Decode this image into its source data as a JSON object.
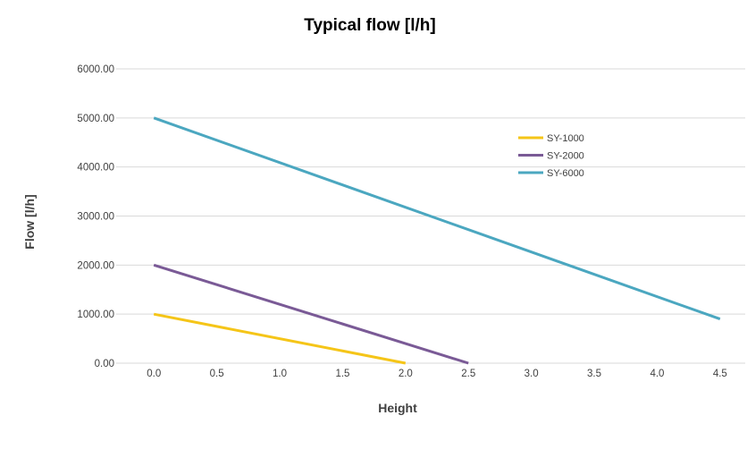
{
  "chart_data": {
    "type": "line",
    "title": "Typical flow [l/h]",
    "xlabel": "Height",
    "ylabel": "Flow [l/h]",
    "xlim": [
      -0.3,
      4.7
    ],
    "ylim": [
      0,
      6000
    ],
    "x_ticks": [
      "0.0",
      "0.5",
      "1.0",
      "1.5",
      "2.0",
      "2.5",
      "3.0",
      "3.5",
      "4.0",
      "4.5"
    ],
    "y_ticks": [
      "0.00",
      "1000.00",
      "2000.00",
      "3000.00",
      "4000.00",
      "5000.00",
      "6000.00"
    ],
    "grid": "horizontal",
    "legend_position": "upper-right",
    "series": [
      {
        "name": "SY-1000",
        "color": "#f5c518",
        "points": [
          [
            0.0,
            1000
          ],
          [
            2.0,
            0
          ]
        ]
      },
      {
        "name": "SY-2000",
        "color": "#7a5a96",
        "points": [
          [
            0.0,
            2000
          ],
          [
            2.5,
            0
          ]
        ]
      },
      {
        "name": "SY-6000",
        "color": "#4ba7c0",
        "points": [
          [
            0.0,
            5000
          ],
          [
            4.5,
            900
          ]
        ]
      }
    ]
  }
}
